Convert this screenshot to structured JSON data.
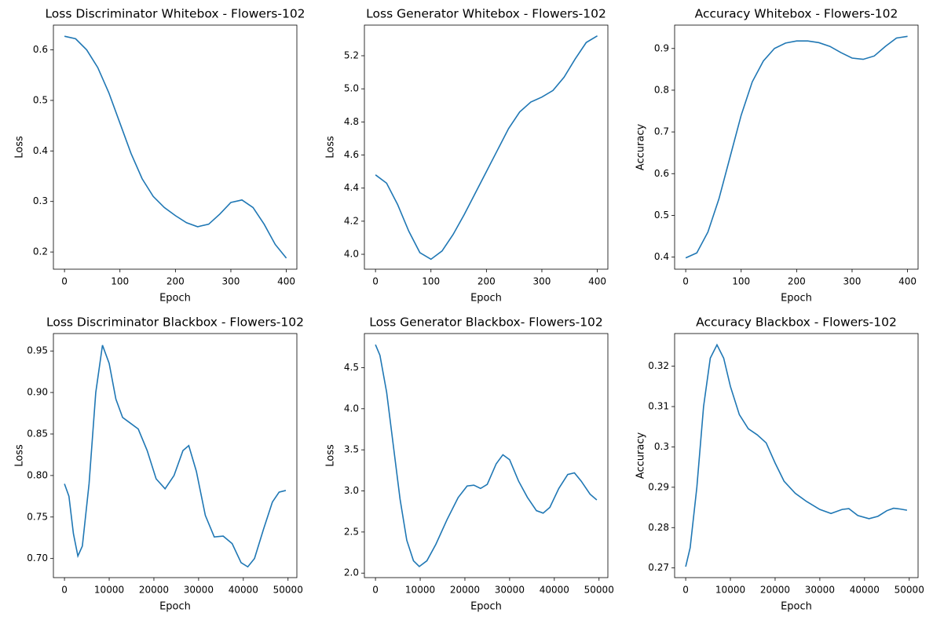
{
  "chart_data": [
    {
      "type": "line",
      "title": "Loss Discriminator Whitebox - Flowers-102",
      "xlabel": "Epoch",
      "ylabel": "Loss",
      "color": "#1f77b4",
      "x": [
        0,
        20,
        40,
        60,
        80,
        100,
        120,
        140,
        160,
        180,
        200,
        220,
        240,
        260,
        280,
        300,
        320,
        340,
        360,
        380,
        400
      ],
      "values": [
        0.627,
        0.622,
        0.6,
        0.565,
        0.515,
        0.455,
        0.395,
        0.345,
        0.31,
        0.288,
        0.272,
        0.258,
        0.25,
        0.255,
        0.275,
        0.298,
        0.303,
        0.288,
        0.255,
        0.215,
        0.188
      ],
      "xlim": [
        -20,
        419
      ],
      "ylim": [
        0.166,
        0.649
      ],
      "xticks": [
        0,
        100,
        200,
        300,
        400
      ],
      "yticks": [
        0.2,
        0.3,
        0.4,
        0.5,
        0.6
      ]
    },
    {
      "type": "line",
      "title": "Loss Generator Whitebox - Flowers-102",
      "xlabel": "Epoch",
      "ylabel": "Loss",
      "color": "#1f77b4",
      "x": [
        0,
        20,
        40,
        60,
        80,
        100,
        120,
        140,
        160,
        180,
        200,
        220,
        240,
        260,
        280,
        300,
        320,
        340,
        360,
        380,
        400
      ],
      "values": [
        4.48,
        4.43,
        4.3,
        4.14,
        4.01,
        3.97,
        4.02,
        4.12,
        4.24,
        4.37,
        4.5,
        4.63,
        4.76,
        4.86,
        4.92,
        4.95,
        4.99,
        5.07,
        5.18,
        5.28,
        5.32
      ],
      "xlim": [
        -20,
        419
      ],
      "ylim": [
        3.91,
        5.385
      ],
      "xticks": [
        0,
        100,
        200,
        300,
        400
      ],
      "yticks": [
        {
          "value": 4,
          "label": "4.0"
        },
        4.2,
        4.4,
        4.6,
        4.8,
        {
          "value": 5,
          "label": "5.0"
        },
        5.2
      ]
    },
    {
      "type": "line",
      "title": "Accuracy Whitebox - Flowers-102",
      "xlabel": "Epoch",
      "ylabel": "Accuracy",
      "color": "#1f77b4",
      "x": [
        0,
        20,
        40,
        60,
        80,
        100,
        120,
        140,
        160,
        180,
        200,
        220,
        240,
        260,
        280,
        300,
        320,
        340,
        360,
        380,
        400
      ],
      "values": [
        0.398,
        0.41,
        0.46,
        0.54,
        0.64,
        0.74,
        0.82,
        0.87,
        0.9,
        0.913,
        0.918,
        0.918,
        0.914,
        0.905,
        0.89,
        0.877,
        0.874,
        0.882,
        0.905,
        0.925,
        0.929
      ],
      "xlim": [
        -20,
        419
      ],
      "ylim": [
        0.371,
        0.956
      ],
      "xticks": [
        0,
        100,
        200,
        300,
        400
      ],
      "yticks": [
        0.4,
        0.5,
        0.6,
        0.7,
        0.8,
        0.9
      ]
    },
    {
      "type": "line",
      "title": "Loss Discriminator Blackbox - Flowers-102",
      "xlabel": "Epoch",
      "ylabel": "Loss",
      "color": "#1f77b4",
      "x": [
        0,
        1000,
        2000,
        3000,
        4000,
        5500,
        7000,
        8500,
        10000,
        11500,
        13000,
        14500,
        16500,
        18500,
        20500,
        22500,
        24500,
        26500,
        27800,
        29500,
        31500,
        33500,
        35500,
        37500,
        39500,
        41000,
        42500,
        44500,
        46500,
        48000,
        49500
      ],
      "values": [
        0.79,
        0.775,
        0.73,
        0.703,
        0.715,
        0.79,
        0.9,
        0.957,
        0.935,
        0.892,
        0.87,
        0.864,
        0.856,
        0.83,
        0.796,
        0.784,
        0.8,
        0.83,
        0.836,
        0.805,
        0.752,
        0.726,
        0.727,
        0.718,
        0.695,
        0.69,
        0.7,
        0.735,
        0.768,
        0.78,
        0.782
      ],
      "xlim": [
        -2475,
        51975
      ],
      "ylim": [
        0.677,
        0.971
      ],
      "xticks": [
        0,
        10000,
        20000,
        30000,
        40000,
        50000
      ],
      "yticks": [
        {
          "value": 0.7,
          "label": "0.70"
        },
        0.75,
        {
          "value": 0.8,
          "label": "0.80"
        },
        0.85,
        {
          "value": 0.9,
          "label": "0.90"
        },
        0.95
      ]
    },
    {
      "type": "line",
      "title": "Loss Generator Blackbox- Flowers-102",
      "xlabel": "Epoch",
      "ylabel": "Loss",
      "color": "#1f77b4",
      "x": [
        0,
        1000,
        2500,
        4000,
        5500,
        7000,
        8500,
        9800,
        11500,
        13500,
        16000,
        18500,
        20500,
        22000,
        23500,
        25000,
        27000,
        28500,
        30000,
        32000,
        34000,
        36000,
        37500,
        39000,
        41000,
        43000,
        44500,
        46000,
        48000,
        49500
      ],
      "values": [
        4.78,
        4.65,
        4.2,
        3.55,
        2.9,
        2.4,
        2.15,
        2.08,
        2.15,
        2.35,
        2.65,
        2.92,
        3.06,
        3.07,
        3.03,
        3.08,
        3.33,
        3.44,
        3.38,
        3.12,
        2.92,
        2.76,
        2.73,
        2.8,
        3.03,
        3.2,
        3.22,
        3.12,
        2.96,
        2.89
      ],
      "xlim": [
        -2475,
        51975
      ],
      "ylim": [
        1.945,
        4.915
      ],
      "xticks": [
        0,
        10000,
        20000,
        30000,
        40000,
        50000
      ],
      "yticks": [
        {
          "value": 2,
          "label": "2.0"
        },
        2.5,
        {
          "value": 3,
          "label": "3.0"
        },
        3.5,
        {
          "value": 4,
          "label": "4.0"
        },
        4.5
      ]
    },
    {
      "type": "line",
      "title": "Accuracy Blackbox - Flowers-102",
      "xlabel": "Epoch",
      "ylabel": "Accuracy",
      "color": "#1f77b4",
      "x": [
        0,
        1000,
        2500,
        4000,
        5500,
        7000,
        8500,
        10000,
        12000,
        14000,
        16000,
        18000,
        20000,
        22000,
        24500,
        27000,
        30000,
        32500,
        35000,
        36500,
        38500,
        41000,
        43000,
        45000,
        46500,
        48000,
        49500
      ],
      "values": [
        0.2703,
        0.275,
        0.29,
        0.31,
        0.322,
        0.3253,
        0.322,
        0.315,
        0.308,
        0.3045,
        0.303,
        0.301,
        0.296,
        0.2915,
        0.2885,
        0.2865,
        0.2845,
        0.2835,
        0.2845,
        0.2847,
        0.283,
        0.2822,
        0.2828,
        0.2842,
        0.2848,
        0.2846,
        0.2843
      ],
      "xlim": [
        -2475,
        51975
      ],
      "ylim": [
        0.2676,
        0.3281
      ],
      "xticks": [
        0,
        10000,
        20000,
        30000,
        40000,
        50000
      ],
      "yticks": [
        0.27,
        0.28,
        0.29,
        0.3,
        0.31,
        0.32
      ]
    }
  ]
}
